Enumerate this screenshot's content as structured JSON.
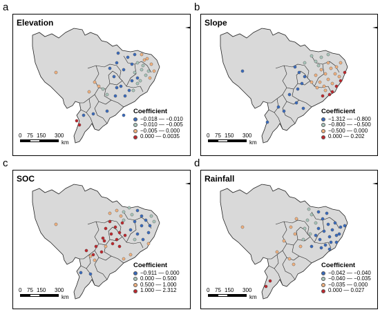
{
  "colors": {
    "land": "#d9d9d9",
    "border": "#222222",
    "c1": "#3a6bbd",
    "c2": "#a9c6bb",
    "c3": "#f2b27f",
    "c4": "#c0272d"
  },
  "panels": [
    {
      "letter": "a",
      "title": "Elevation",
      "legend": {
        "title": "Coefficient",
        "items": [
          "−0.018 — −0.010",
          "−0.010 — −0.005",
          "−0.005 — 0.000",
          "0.000 — 0.0035"
        ]
      },
      "scale": {
        "labels": [
          "0",
          "75",
          "150",
          "300"
        ],
        "unit": "km"
      },
      "compass_icon": "compass-rose-icon"
    },
    {
      "letter": "b",
      "title": "Slope",
      "legend": {
        "title": "Coefficient",
        "items": [
          "−1.312 — −0.800",
          "−0.800 — −0.500",
          "−0.500 — 0.000",
          "0.000 — 0.202"
        ]
      },
      "scale": {
        "labels": [
          "0",
          "75",
          "150",
          "300"
        ],
        "unit": "km"
      },
      "compass_icon": "compass-rose-icon"
    },
    {
      "letter": "c",
      "title": "SOC",
      "legend": {
        "title": "Coefficient",
        "items": [
          "−0.911 — 0.000",
          "0.000 — 0.500",
          "0.500 — 1.000",
          "1.000 — 2.312"
        ]
      },
      "scale": {
        "labels": [
          "0",
          "75",
          "150",
          "300"
        ],
        "unit": "km"
      },
      "compass_icon": "compass-rose-icon"
    },
    {
      "letter": "d",
      "title": "Rainfall",
      "legend": {
        "title": "Coefficient",
        "items": [
          "−0.042 — −0.040",
          "−0.040 — −0.035",
          "−0.035 — 0.000",
          "0.000 — 0.027"
        ]
      },
      "scale": {
        "labels": [
          "0",
          "75",
          "150",
          "300"
        ],
        "unit": "km"
      },
      "compass_icon": "compass-rose-icon"
    }
  ]
}
